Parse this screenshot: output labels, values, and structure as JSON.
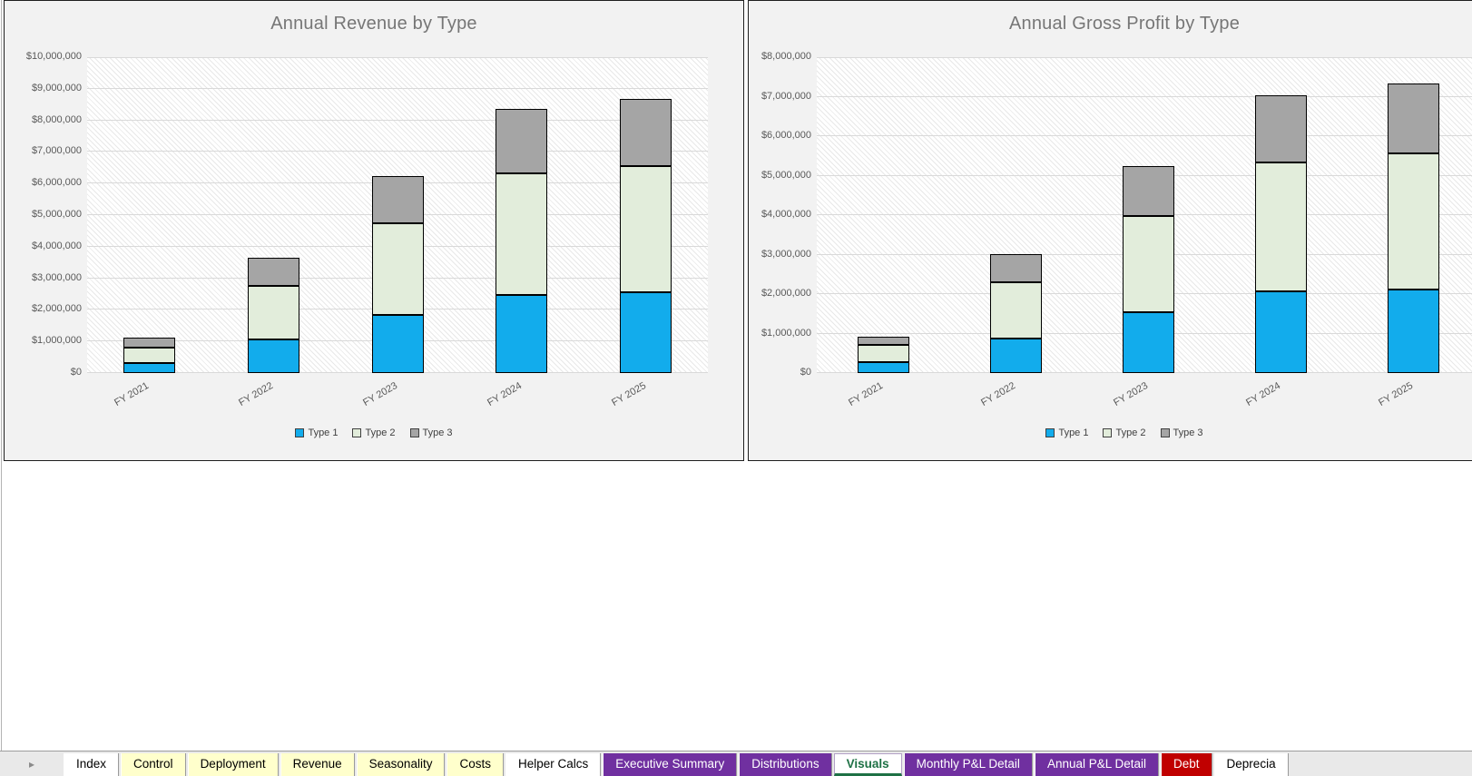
{
  "tabs_bar": {
    "nav_arrow": "▸",
    "tabs": [
      {
        "label": "Index",
        "bg": "#ffffff",
        "fg": "#000000",
        "active": false
      },
      {
        "label": "Control",
        "bg": "#ffffcc",
        "fg": "#000000",
        "active": false
      },
      {
        "label": "Deployment",
        "bg": "#ffffcc",
        "fg": "#000000",
        "active": false
      },
      {
        "label": "Revenue",
        "bg": "#ffffcc",
        "fg": "#000000",
        "active": false
      },
      {
        "label": "Seasonality",
        "bg": "#ffffcc",
        "fg": "#000000",
        "active": false
      },
      {
        "label": "Costs",
        "bg": "#ffffcc",
        "fg": "#000000",
        "active": false
      },
      {
        "label": "Helper Calcs",
        "bg": "#ffffff",
        "fg": "#000000",
        "active": false
      },
      {
        "label": "Executive Summary",
        "bg": "#7030a0",
        "fg": "#ffffff",
        "active": false
      },
      {
        "label": "Distributions",
        "bg": "#7030a0",
        "fg": "#ffffff",
        "active": false
      },
      {
        "label": "Visuals",
        "bg": "#ffffff",
        "fg": "#1e7145",
        "active": true
      },
      {
        "label": "Monthly P&L Detail",
        "bg": "#7030a0",
        "fg": "#ffffff",
        "active": false
      },
      {
        "label": "Annual P&L Detail",
        "bg": "#7030a0",
        "fg": "#ffffff",
        "active": false
      },
      {
        "label": "Debt",
        "bg": "#c00000",
        "fg": "#ffffff",
        "active": false
      },
      {
        "label": "Deprecia",
        "bg": "#ffffff",
        "fg": "#000000",
        "active": false
      }
    ]
  },
  "chart_data": [
    {
      "type": "bar",
      "stacked": true,
      "title": "Annual Revenue by Type",
      "categories": [
        "FY 2021",
        "FY 2022",
        "FY 2023",
        "FY 2024",
        "FY 2025"
      ],
      "series": [
        {
          "name": "Type 1",
          "color": "#12acec",
          "values": [
            330000,
            1050000,
            1850000,
            2480000,
            2550000
          ]
        },
        {
          "name": "Type 2",
          "color": "#e2eddb",
          "values": [
            480000,
            1700000,
            2900000,
            3850000,
            4000000
          ]
        },
        {
          "name": "Type 3",
          "color": "#a5a5a5",
          "values": [
            310000,
            900000,
            1500000,
            2020000,
            2120000
          ]
        }
      ],
      "ylim": [
        0,
        10000000
      ],
      "ytick_step": 1000000,
      "yticklabels": [
        "$0",
        "$1,000,000",
        "$2,000,000",
        "$3,000,000",
        "$4,000,000",
        "$5,000,000",
        "$6,000,000",
        "$7,000,000",
        "$8,000,000",
        "$9,000,000",
        "$10,000,000"
      ],
      "grid": true,
      "legend_position": "bottom"
    },
    {
      "type": "bar",
      "stacked": true,
      "title": "Annual Gross Profit by Type",
      "categories": [
        "FY 2021",
        "FY 2022",
        "FY 2023",
        "FY 2024",
        "FY 2025"
      ],
      "series": [
        {
          "name": "Type 1",
          "color": "#12acec",
          "values": [
            270000,
            880000,
            1530000,
            2060000,
            2110000
          ]
        },
        {
          "name": "Type 2",
          "color": "#e2eddb",
          "values": [
            450000,
            1430000,
            2450000,
            3280000,
            3450000
          ]
        },
        {
          "name": "Type 3",
          "color": "#a5a5a5",
          "values": [
            210000,
            710000,
            1270000,
            1700000,
            1770000
          ]
        }
      ],
      "ylim": [
        0,
        8000000
      ],
      "ytick_step": 1000000,
      "yticklabels": [
        "$0",
        "$1,000,000",
        "$2,000,000",
        "$3,000,000",
        "$4,000,000",
        "$5,000,000",
        "$6,000,000",
        "$7,000,000",
        "$8,000,000"
      ],
      "grid": true,
      "legend_position": "bottom"
    }
  ]
}
